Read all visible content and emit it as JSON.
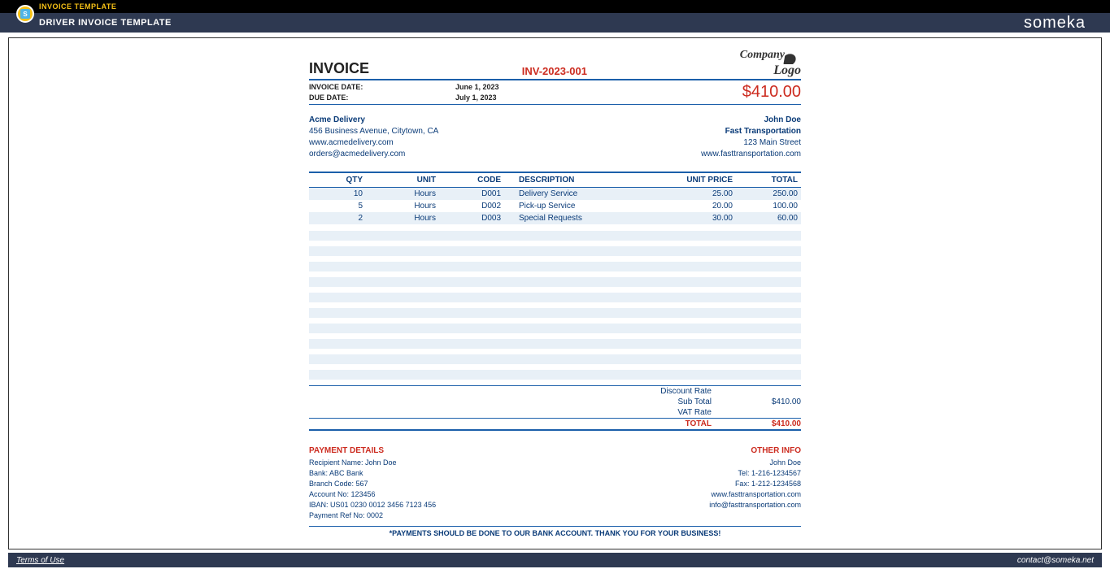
{
  "header": {
    "top_label": "INVOICE TEMPLATE",
    "sub_title": "DRIVER INVOICE TEMPLATE",
    "brand": "someka",
    "icon_letter": "S"
  },
  "invoice": {
    "title": "INVOICE",
    "number": "INV-2023-001",
    "logo_line1": "Company",
    "logo_line2": "Logo",
    "date_label": "INVOICE DATE:",
    "date_value": "June 1, 2023",
    "due_label": "DUE DATE:",
    "due_value": "July 1, 2023",
    "total_top": "$410.00",
    "from": {
      "name": "Acme Delivery",
      "addr": "456 Business Avenue, Citytown, CA",
      "web": "www.acmedelivery.com",
      "email": "orders@acmedelivery.com"
    },
    "to": {
      "name": "John Doe",
      "company": "Fast Transportation",
      "addr": "123 Main Street",
      "web": "www.fasttransportation.com"
    },
    "cols": {
      "qty": "QTY",
      "unit": "UNIT",
      "code": "CODE",
      "desc": "DESCRIPTION",
      "unitprice": "UNIT PRICE",
      "total": "TOTAL"
    },
    "rows": [
      {
        "qty": "10",
        "unit": "Hours",
        "code": "D001",
        "desc": "Delivery Service",
        "up": "25.00",
        "tot": "250.00"
      },
      {
        "qty": "5",
        "unit": "Hours",
        "code": "D002",
        "desc": "Pick-up Service",
        "up": "20.00",
        "tot": "100.00"
      },
      {
        "qty": "2",
        "unit": "Hours",
        "code": "D003",
        "desc": "Special Requests",
        "up": "30.00",
        "tot": "60.00"
      }
    ],
    "empty_count": 10,
    "summary": {
      "discount_label": "Discount Rate",
      "subtotal_label": "Sub Total",
      "subtotal_value": "$410.00",
      "vat_label": "VAT Rate",
      "total_label": "TOTAL",
      "total_value": "$410.00"
    },
    "payment": {
      "title": "PAYMENT DETAILS",
      "recipient": "Recipient Name: John Doe",
      "bank": "Bank: ABC Bank",
      "branch": "Branch Code: 567",
      "account": "Account No: 123456",
      "iban": "IBAN: US01 0230 0012 3456 7123 456",
      "ref": "Payment Ref No: 0002"
    },
    "other": {
      "title": "OTHER INFO",
      "name": "John Doe",
      "tel": "Tel: 1-216-1234567",
      "fax": "Fax: 1-212-1234568",
      "web": "www.fasttransportation.com",
      "email": "info@fasttransportation.com"
    },
    "footer_note": "*PAYMENTS SHOULD BE DONE TO OUR BANK ACCOUNT. THANK YOU FOR YOUR BUSINESS!"
  },
  "footer": {
    "terms": "Terms of Use",
    "contact": "contact@someka.net"
  },
  "colors": {
    "accent_blue": "#1b5faa",
    "text_blue": "#0a3b78",
    "red": "#cc2b1f",
    "stripe": "#e8f0f7",
    "dark": "#2e3951",
    "gold": "#f6c116"
  }
}
